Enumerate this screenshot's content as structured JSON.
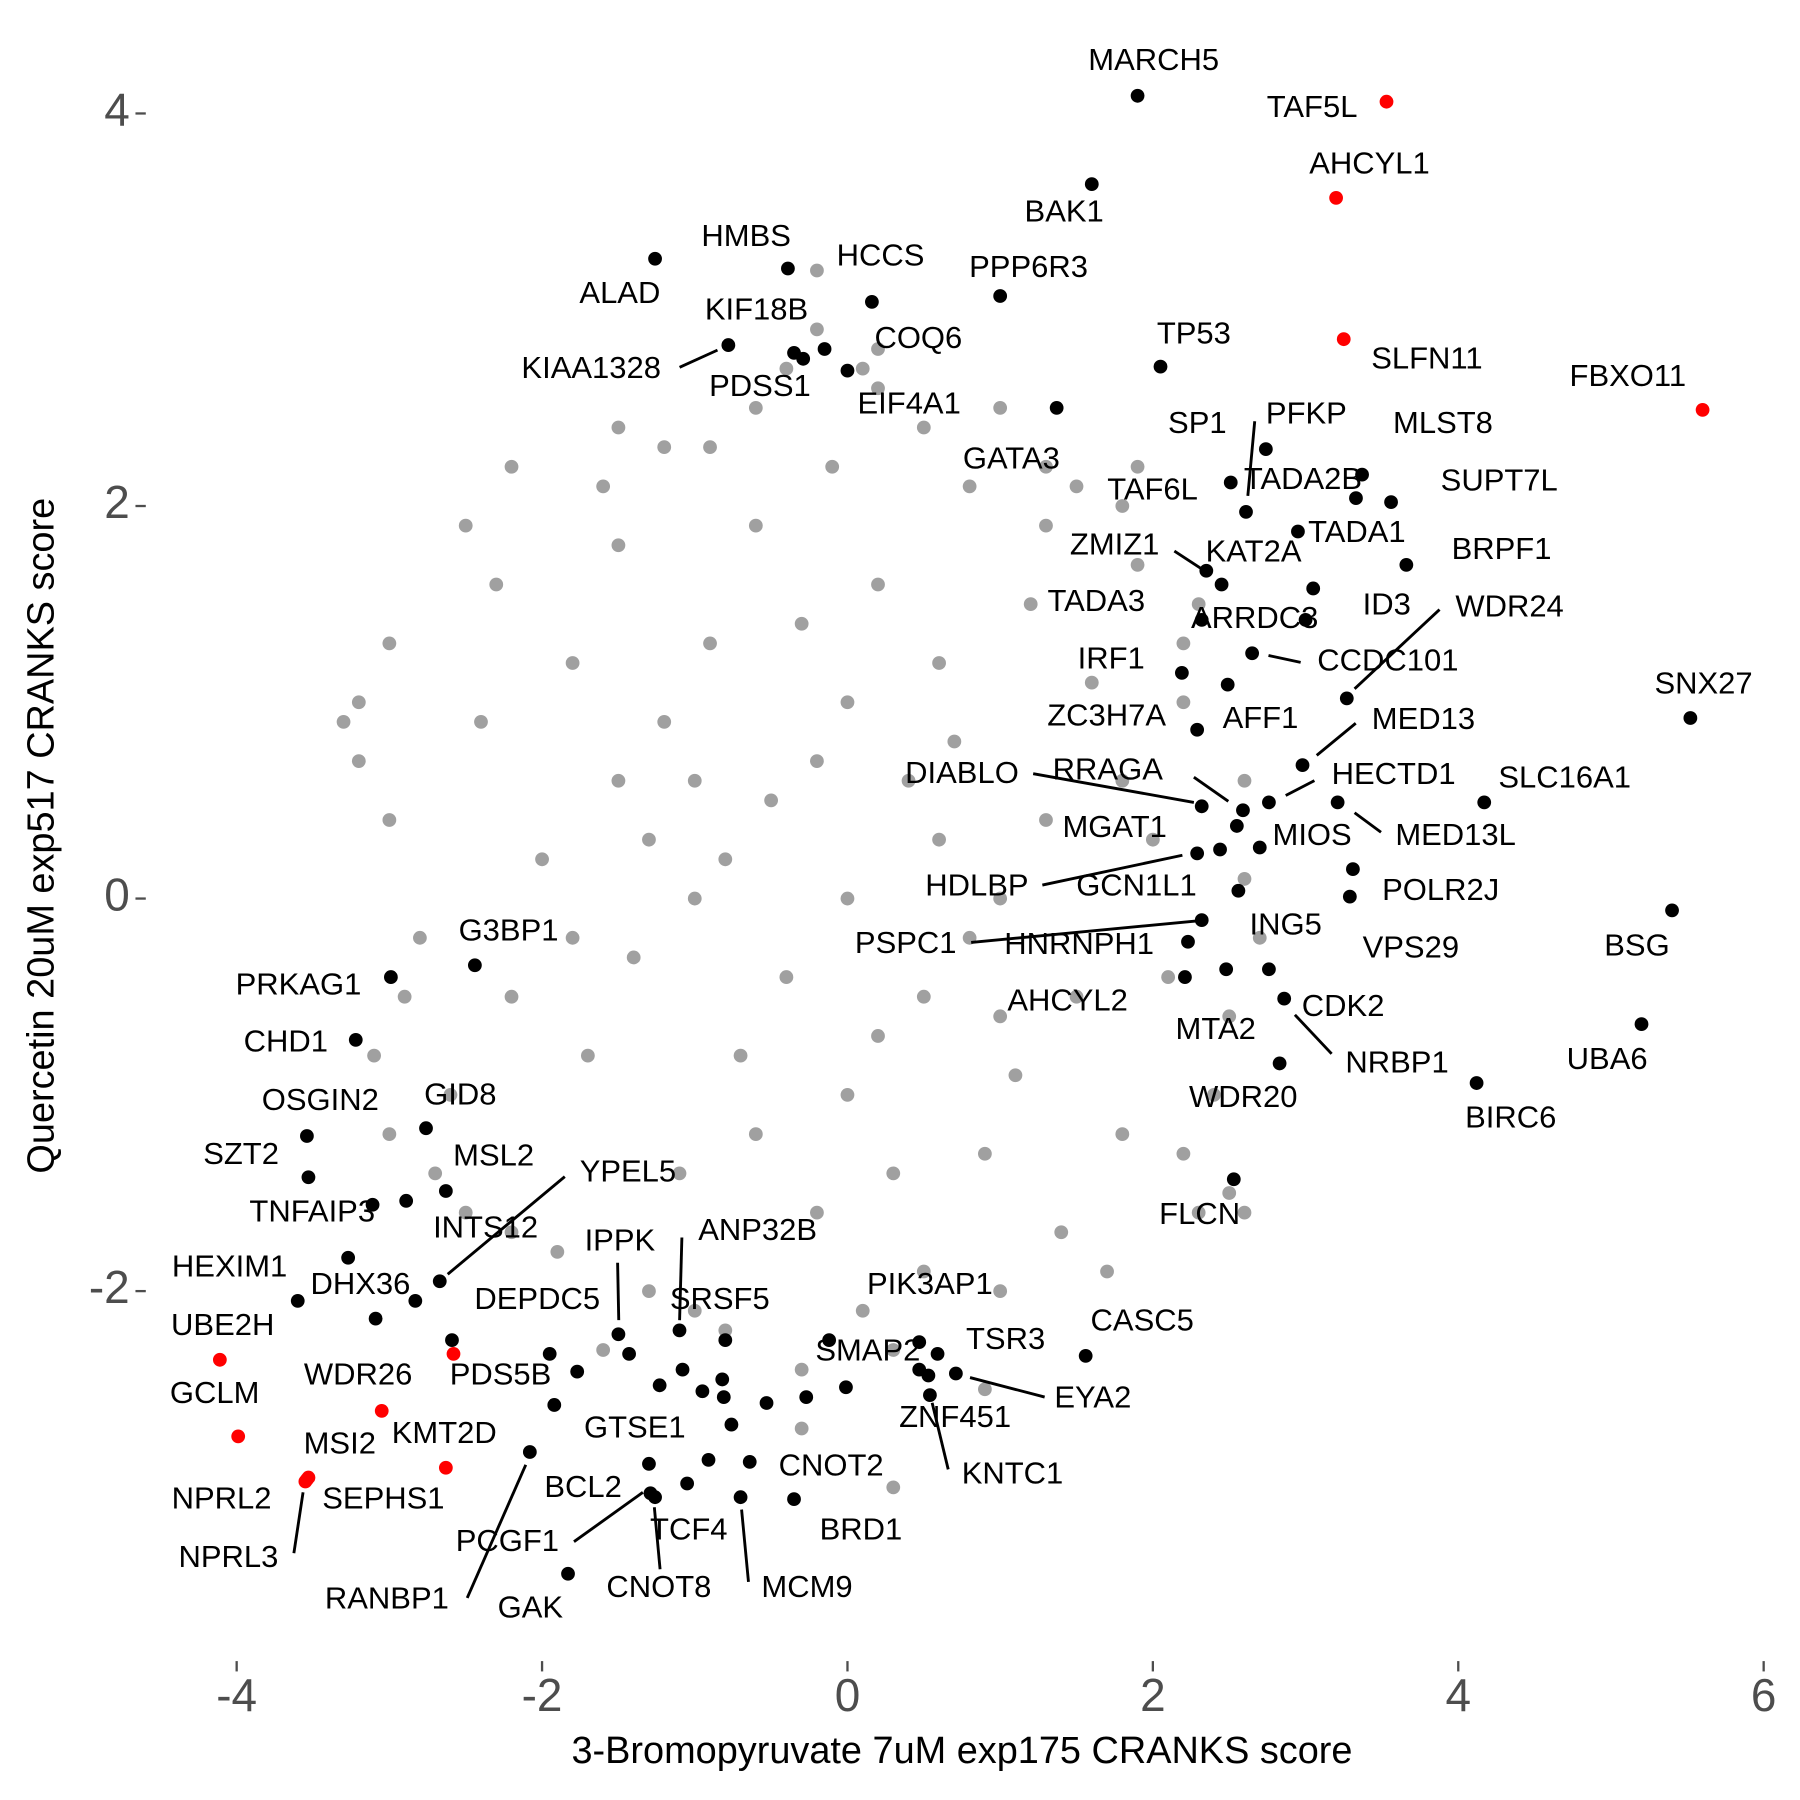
{
  "chart_data": {
    "type": "scatter",
    "xlabel": "3-Bromopyruvate 7uM exp175 CRANKS score",
    "ylabel": "Quercetin 20uM exp517 CRANKS score",
    "xlim": [
      -4.55,
      6.05
    ],
    "ylim": [
      -3.85,
      4.35
    ],
    "xticks": [
      -4,
      -2,
      0,
      2,
      4,
      6
    ],
    "yticks": [
      -2,
      0,
      2,
      4
    ],
    "grid": false,
    "series": [
      {
        "color": "#a0a0a0",
        "x": [
          0,
          -0.5,
          0.5,
          -1,
          1,
          0,
          0,
          -0.7,
          0.7,
          -1.2,
          1.1,
          -0.3,
          0.3,
          -1.4,
          1.3,
          -0.9,
          0.9,
          -1.5,
          1.5,
          0.2,
          -0.2,
          -1.7,
          1.6,
          -1.1,
          1.2,
          -0.6,
          0.5,
          -1.8,
          1.8,
          -2.0,
          2.0,
          -0.1,
          0.1,
          -2.2,
          2.1,
          -1.5,
          1.4,
          -2.4,
          2.2,
          -0.9,
          0.8,
          -0.8,
          1.0,
          -2.6,
          2.4,
          -1.9,
          1.9,
          -2.3,
          2.3,
          -0.4,
          0.2,
          -1.5,
          1.0,
          -3.0,
          2.6,
          -2.9,
          -3.2,
          -2.7,
          -1.3,
          1.5,
          -0.3,
          0.3,
          -1.0,
          -3.3,
          -3.2,
          -2.5,
          -1.6,
          -0.2,
          0.1,
          0.5,
          1.3,
          1.8,
          2.3,
          2.6,
          2.7,
          2.5,
          2.2,
          2.5,
          2.6,
          1.7,
          0.9,
          0.3,
          -0.3,
          -1.6,
          -2.2,
          -2.5,
          -3.0,
          -3.1,
          -2.8,
          -3.0,
          -2.2,
          -1.2,
          -0.6,
          -0.2,
          0.2,
          1.3,
          1.9,
          2.2,
          1.8,
          -1.8,
          -1.3,
          0.6,
          -0.4,
          0.4,
          -0.8,
          0.8,
          -0.2,
          0.2,
          -0.6,
          0.6,
          -1.0,
          1.0
        ],
        "y": [
          0,
          0.5,
          -0.5,
          0,
          0,
          1,
          -1,
          -0.8,
          0.8,
          0.9,
          -0.9,
          1.4,
          -1.4,
          -0.3,
          0.4,
          1.3,
          -1.3,
          0.6,
          -0.5,
          1.6,
          -1.6,
          -0.8,
          1.1,
          -1.4,
          1.5,
          1.9,
          -1.9,
          1.2,
          -1.2,
          0.2,
          0.3,
          2.2,
          -2.1,
          -0.5,
          -0.4,
          1.8,
          -1.7,
          0.9,
          1.0,
          2.3,
          2.1,
          -2.2,
          -2.0,
          -1.0,
          -1.0,
          -1.8,
          1.7,
          1.6,
          -1.6,
          2.7,
          2.6,
          2.4,
          2.5,
          0.4,
          0.1,
          -0.5,
          1.0,
          -1.4,
          -2.0,
          2.1,
          -2.4,
          -2.3,
          -2.1,
          0.9,
          0.7,
          1.9,
          2.1,
          2.9,
          2.7,
          2.4,
          2.2,
          2.0,
          1.5,
          0.6,
          -0.2,
          -0.6,
          -1.3,
          -1.5,
          -1.6,
          -1.9,
          -2.5,
          -3.0,
          -2.7,
          -2.3,
          -1.7,
          -1.6,
          -1.2,
          -0.8,
          -0.2,
          1.3,
          2.2,
          2.3,
          2.5,
          3.2,
          2.8,
          1.9,
          2.2,
          1.3,
          0.6,
          -0.2,
          0.3,
          0.3,
          -0.4,
          0.6,
          0.2,
          -0.2,
          0.7,
          -0.7,
          -1.2,
          1.2,
          0.6,
          -0.6
        ]
      },
      {
        "color": "#000000",
        "x": [
          -1.95,
          -1.77,
          -1.08,
          -0.95,
          -0.82,
          -0.81,
          -0.76,
          -0.91,
          -0.53,
          -0.27,
          -0.12,
          -0.01,
          -3.09,
          -3.27,
          -1.23
        ],
        "y": [
          -2.32,
          -2.41,
          -2.4,
          -2.51,
          -2.45,
          -2.54,
          -2.68,
          -2.86,
          -2.57,
          -2.54,
          -2.25,
          -2.49,
          -2.14,
          -1.83,
          -2.48
        ]
      },
      {
        "color": "#000000",
        "labels": [
          "MARCH5",
          "BAK1",
          "HMBS",
          "ALAD",
          "HCCS",
          "PPP6R3",
          "KIF18B",
          "KIAA1328",
          "COQ6",
          "EIF4A1",
          "PDSS1",
          "GATA3",
          "TP53",
          "SP1",
          "PFKP",
          "TAF6L",
          "MLST8",
          "TADA2B",
          "SUPT7L",
          "TADA1",
          "BRPF1",
          "KAT2A",
          "ZMIZ1",
          "ID3",
          "TADA3",
          "ARRDC3",
          "WDR24",
          "IRF1",
          "CCDC101",
          "AFF1",
          "ZC3H7A",
          "MED13",
          "HECTD1",
          "DIABLO",
          "RRAGA",
          "SLC16A1",
          "MED13L",
          "MGAT1",
          "MIOS",
          "HDLBP",
          "GCN1L1",
          "POLR2J",
          "ING5",
          "VPS29",
          "BSG",
          "PSPC1",
          "HNRNPH1",
          "AHCYL2",
          "MTA2",
          "CDK2",
          "NRBP1",
          "WDR20",
          "BIRC6",
          "UBA6",
          "SNX27",
          "FLCN",
          "G3BP1",
          "PRKAG1",
          "CHD1",
          "OSGIN2",
          "GID8",
          "SZT2",
          "MSL2",
          "TNFAIP3",
          "INTS12",
          "YPEL5",
          "HEXIM1",
          "DHX36",
          "IPPK",
          "ANP32B",
          "DEPDC5",
          "SRSF5",
          "PIK3AP1",
          "SMAP2",
          "TSR3",
          "CASC5",
          "EYA2",
          "ZNF451",
          "KNTC1",
          "GTSE1",
          "CNOT2",
          "BRD1",
          "BCL2",
          "PCGF1",
          "TCF4",
          "CNOT8",
          "MCM9",
          "RANBP1",
          "GAK",
          "PDS5B"
        ],
        "x": [
          1.9,
          1.6,
          -0.39,
          -1.26,
          0.16,
          1.0,
          -0.35,
          -0.78,
          -0.15,
          0.0,
          -0.29,
          1.37,
          2.05,
          2.74,
          2.61,
          2.51,
          3.37,
          3.33,
          3.56,
          2.95,
          3.66,
          2.45,
          2.35,
          3.05,
          2.32,
          3.0,
          3.27,
          2.19,
          2.65,
          2.49,
          2.29,
          2.98,
          2.76,
          2.32,
          2.59,
          4.17,
          3.21,
          2.55,
          2.7,
          2.29,
          2.44,
          3.31,
          2.56,
          3.29,
          5.4,
          2.32,
          2.23,
          2.21,
          2.48,
          2.76,
          2.86,
          2.83,
          4.12,
          5.2,
          5.52,
          2.53,
          -2.44,
          -2.99,
          -3.22,
          -3.54,
          -2.76,
          -3.53,
          -2.63,
          -3.11,
          -2.89,
          -2.67,
          -3.6,
          -2.83,
          -1.5,
          -1.1,
          -1.43,
          -0.8,
          0.47,
          0.47,
          0.59,
          1.56,
          0.71,
          0.53,
          0.54,
          -1.92,
          -0.64,
          -0.35,
          -1.3,
          -1.29,
          -1.05,
          -1.26,
          -0.7,
          -2.08,
          -1.83,
          -2.59
        ],
        "y": [
          4.09,
          3.64,
          3.21,
          3.26,
          3.04,
          3.07,
          2.78,
          2.82,
          2.8,
          2.69,
          2.75,
          2.5,
          2.71,
          2.29,
          1.97,
          2.12,
          2.16,
          2.04,
          2.02,
          1.87,
          1.7,
          1.6,
          1.67,
          1.58,
          1.42,
          1.42,
          1.02,
          1.15,
          1.25,
          1.09,
          0.86,
          0.68,
          0.49,
          0.47,
          0.45,
          0.49,
          0.49,
          0.37,
          0.26,
          0.23,
          0.25,
          0.15,
          0.04,
          0.01,
          -0.06,
          -0.11,
          -0.22,
          -0.4,
          -0.36,
          -0.36,
          -0.51,
          -0.84,
          -0.94,
          -0.64,
          0.92,
          -1.43,
          -0.34,
          -0.4,
          -0.72,
          -1.21,
          -1.17,
          -1.42,
          -1.49,
          -1.56,
          -1.54,
          -1.95,
          -2.05,
          -2.05,
          -2.22,
          -2.2,
          -2.32,
          -2.25,
          -2.26,
          -2.4,
          -2.32,
          -2.33,
          -2.42,
          -2.43,
          -2.53,
          -2.58,
          -2.87,
          -3.06,
          -2.88,
          -3.03,
          -2.98,
          -3.05,
          -3.05,
          -2.82,
          -3.44,
          -2.25
        ]
      },
      {
        "color": "#ff0000",
        "labels": [
          "TAF5L",
          "AHCYL1",
          "SLFN11",
          "FBXO11",
          "UBE2H",
          "GCLM",
          "NPRL3",
          "MSI2",
          "WDR26",
          "KMT2D",
          "NPRL2",
          "SEPHS1"
        ],
        "x": [
          3.53,
          3.2,
          3.25,
          5.6,
          -4.11,
          -3.99,
          -3.54,
          -3.05,
          -2.58,
          -2.63,
          -3.55,
          -3.53
        ],
        "y": [
          4.06,
          3.57,
          2.85,
          2.49,
          -2.35,
          -2.74,
          -2.96,
          -2.61,
          -2.32,
          -2.9,
          -2.97,
          -2.95
        ]
      }
    ]
  }
}
